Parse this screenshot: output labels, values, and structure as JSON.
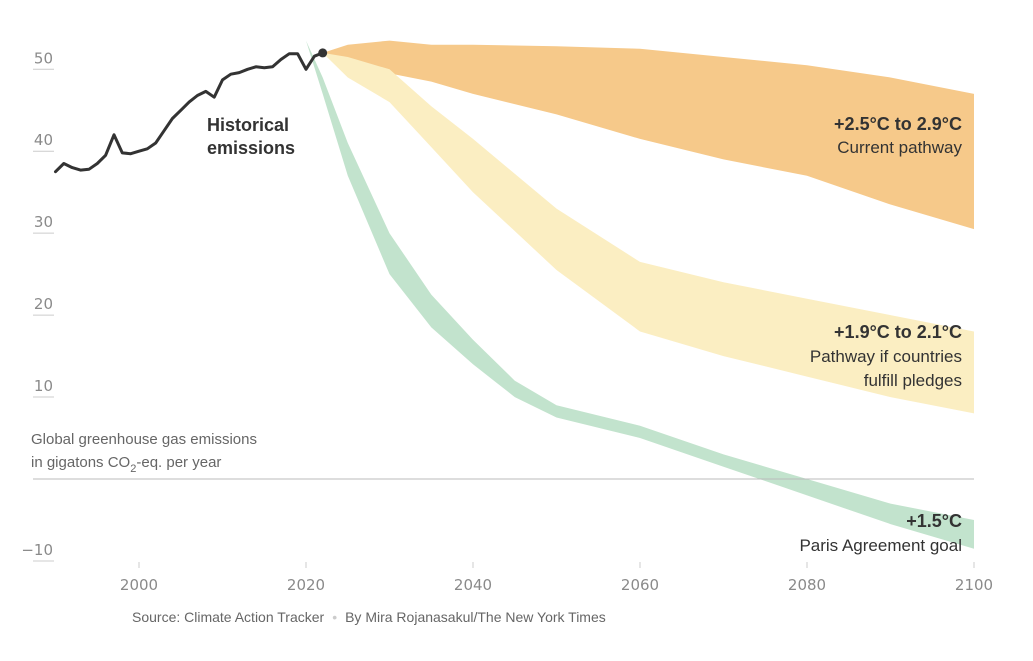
{
  "chart_data": {
    "type": "area",
    "title": "",
    "ylabel_line1": "Global greenhouse gas emissions",
    "ylabel_line2_pre": "in gigatons CO",
    "ylabel_sub": "2",
    "ylabel_line2_post": "-eq. per year",
    "xlim": [
      1990,
      2100
    ],
    "ylim": [
      -12,
      54
    ],
    "x_ticks": [
      2000,
      2020,
      2040,
      2060,
      2080,
      2100
    ],
    "y_ticks": [
      -10,
      10,
      20,
      30,
      40,
      50
    ],
    "y_tick_labels": [
      "−10",
      "10",
      "20",
      "30",
      "40",
      "50"
    ],
    "grid": false,
    "zero_line": true,
    "historical": {
      "label_line1": "Historical",
      "label_line2": "emissions",
      "color": "#333333",
      "x": [
        1990,
        1991,
        1992,
        1993,
        1994,
        1995,
        1996,
        1997,
        1998,
        1999,
        2000,
        2001,
        2002,
        2003,
        2004,
        2005,
        2006,
        2007,
        2008,
        2009,
        2010,
        2011,
        2012,
        2013,
        2014,
        2015,
        2016,
        2017,
        2018,
        2019,
        2020,
        2021,
        2022
      ],
      "y": [
        37.5,
        38.5,
        38,
        37.7,
        37.8,
        38.5,
        39.5,
        42,
        39.8,
        39.7,
        40,
        40.3,
        41,
        42.5,
        44,
        45,
        46,
        46.8,
        47.3,
        46.6,
        48.7,
        49.4,
        49.6,
        50,
        50.3,
        50.2,
        50.3,
        51.2,
        51.9,
        51.9,
        50,
        51.6,
        52
      ]
    },
    "series": [
      {
        "name_line1": "+2.5°C to 2.9°C",
        "name_line2": "Current pathway",
        "color": "#f6c98a",
        "x": [
          2022,
          2025,
          2030,
          2035,
          2040,
          2050,
          2060,
          2070,
          2080,
          2090,
          2100
        ],
        "upper": [
          52,
          53,
          53.5,
          53,
          53,
          52.8,
          52.5,
          51.5,
          50.5,
          49,
          47
        ],
        "lower": [
          52,
          51,
          49.5,
          48.5,
          47,
          44.5,
          41.5,
          39,
          37,
          33.5,
          30.5
        ]
      },
      {
        "name_line1": "+1.9°C to 2.1°C",
        "name_line2": "Pathway if countries",
        "name_line3": "fulfill pledges",
        "color": "#fbeec2",
        "x": [
          2022,
          2025,
          2030,
          2035,
          2040,
          2050,
          2060,
          2070,
          2080,
          2090,
          2100
        ],
        "upper": [
          52,
          51.5,
          50,
          45.5,
          41.5,
          33,
          26.5,
          24,
          22,
          20,
          18
        ],
        "lower": [
          52,
          49,
          46,
          40.5,
          35,
          25.5,
          18,
          15,
          12.5,
          10,
          8
        ]
      },
      {
        "name_line1": "+1.5°C",
        "name_line2": "Paris Agreement goal",
        "color": "#c2e3cd",
        "x": [
          2020,
          2022,
          2025,
          2030,
          2035,
          2040,
          2045,
          2050,
          2060,
          2070,
          2080,
          2090,
          2100
        ],
        "upper": [
          53.5,
          49,
          41,
          30,
          22.5,
          17,
          12,
          9,
          6.5,
          3,
          0,
          -3,
          -5
        ],
        "lower": [
          53.5,
          47,
          37,
          25,
          18.5,
          14,
          10,
          7.5,
          5,
          1.5,
          -2,
          -5.5,
          -8.5
        ]
      }
    ],
    "endpoint_marker": {
      "x": 2022,
      "y": 52
    }
  },
  "footer": {
    "source": "Source: Climate Action Tracker",
    "separator": "•",
    "credit": "By Mira Rojanasakul/The New York Times"
  }
}
